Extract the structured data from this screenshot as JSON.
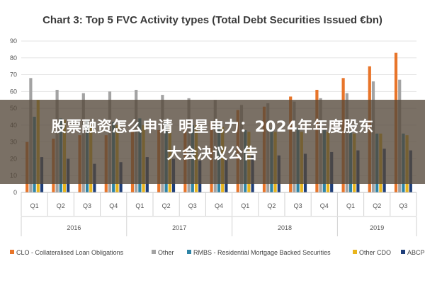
{
  "chart_data": {
    "type": "bar",
    "title": "Chart 3: Top 5 FVC Activity types (Total Debt Securities Issued €bn)",
    "ylim": [
      0,
      90
    ],
    "yticks": [
      0,
      10,
      20,
      30,
      40,
      50,
      60,
      70,
      80,
      90
    ],
    "grid": true,
    "legend_position": "bottom",
    "categories": [
      "Q1",
      "Q2",
      "Q3",
      "Q4",
      "Q1",
      "Q2",
      "Q3",
      "Q4",
      "Q1",
      "Q2",
      "Q3",
      "Q4",
      "Q1",
      "Q2",
      "Q3"
    ],
    "groups": [
      {
        "label": "2016",
        "count": 4
      },
      {
        "label": "2017",
        "count": 4
      },
      {
        "label": "2018",
        "count": 4
      },
      {
        "label": "2019",
        "count": 3
      }
    ],
    "series": [
      {
        "name": "CLO - Collateralised Loan Obligations",
        "color": "#E8752A",
        "values": [
          30,
          32,
          34,
          34,
          36,
          37,
          38,
          42,
          49,
          51,
          57,
          61,
          68,
          75,
          83
        ]
      },
      {
        "name": "Other",
        "color": "#A3A3A3",
        "values": [
          68,
          61,
          59,
          60,
          61,
          58,
          56,
          55,
          52,
          53,
          54,
          56,
          59,
          66,
          67
        ]
      },
      {
        "name": "RMBS - Residential Mortgage Backed Securities",
        "color": "#2E84A6",
        "values": [
          45,
          44,
          43,
          42,
          44,
          42,
          40,
          39,
          37,
          38,
          38,
          37,
          36,
          35,
          35
        ]
      },
      {
        "name": "Other CDO",
        "color": "#E9B51C",
        "values": [
          55,
          43,
          40,
          40,
          40,
          40,
          40,
          39,
          36,
          36,
          36,
          36,
          35,
          35,
          34
        ]
      },
      {
        "name": "ABCP",
        "color": "#1F3F7A",
        "values": [
          21,
          20,
          17,
          18,
          21,
          20,
          19,
          20,
          22,
          22,
          23,
          24,
          25,
          26,
          25
        ]
      }
    ]
  },
  "overlay": {
    "line1": "股票融资怎么申请 明星电力：2024年年度股东",
    "line2": "大会决议公告"
  }
}
